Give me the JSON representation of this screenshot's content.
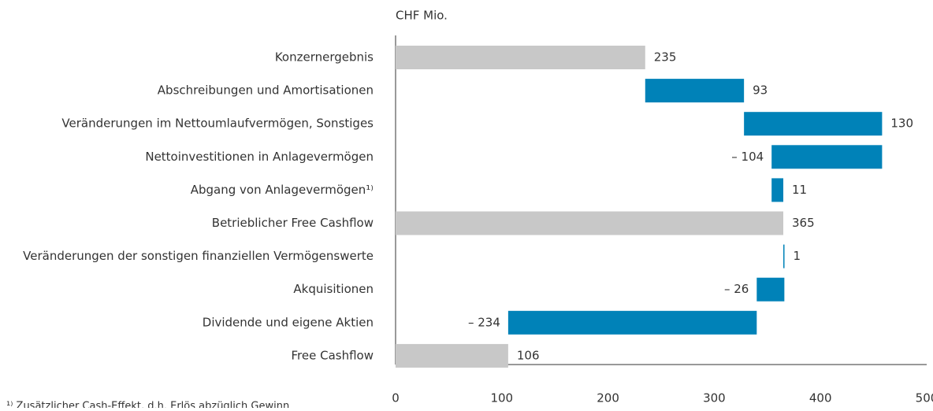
{
  "chart_data": {
    "type": "waterfall",
    "unit_label": "CHF Mio.",
    "categories": [
      "Konzernergebnis",
      "Abschreibungen und Amortisationen",
      "Veränderungen im Nettoumlaufvermögen, Sonstiges",
      "Nettoinvestitionen in Anlagevermögen",
      "Abgang von Anlagevermögen¹⁾",
      "Betrieblicher Free Cashflow",
      "Veränderungen der sonstigen finanziellen Vermögenswerte",
      "Akquisitionen",
      "Dividende und eigene Aktien",
      "Free Cashflow"
    ],
    "values": [
      235,
      93,
      130,
      -104,
      11,
      365,
      1,
      -26,
      -234,
      106
    ],
    "value_labels": [
      "235",
      "93",
      "130",
      "– 104",
      "11",
      "365",
      "1",
      "– 26",
      "– 234",
      "106"
    ],
    "totals": [
      true,
      false,
      false,
      false,
      false,
      true,
      false,
      false,
      false,
      true
    ],
    "color": "#0082b8",
    "total_color": "#c8c8c8",
    "xlim": [
      0,
      500
    ],
    "xticks": [
      0,
      100,
      200,
      300,
      400,
      500
    ],
    "footnote": "¹⁾ Zusätzlicher Cash-Effekt, d.h. Erlös abzüglich Gewinn"
  }
}
